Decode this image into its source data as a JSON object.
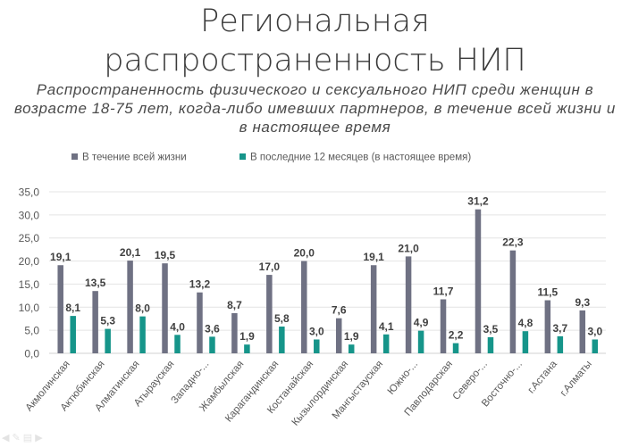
{
  "title": "Региональная распространенность НИП",
  "subtitle": "Распространенность физического и сексуального НИП среди женщин в возрасте 18-75 лет, когда-либо имевших партнеров, в течение всей жизни и в настоящее время",
  "chart_data": {
    "type": "bar",
    "title": "Региональная распространенность НИП",
    "subtitle": "Распространенность физического и сексуального НИП среди женщин в возрасте 18-75 лет, когда-либо имевших партнеров, в течение всей жизни и в настоящее время",
    "categories": [
      "Акмолинская",
      "Актюбинская",
      "Алматинская",
      "Атырауская",
      "Западно-...",
      "Жамбылская",
      "Карагандинская",
      "Костанайская",
      "Кызылординская",
      "Мангыстауская",
      "Южно-...",
      "Павлодарская",
      "Северо-...",
      "Восточно-...",
      "г.Астана",
      "г.Алматы"
    ],
    "series": [
      {
        "name": "В течение всей жизни",
        "color": "#6f7183",
        "values": [
          19.1,
          13.5,
          20.1,
          19.5,
          13.2,
          8.7,
          17.0,
          20.0,
          7.6,
          19.1,
          21.0,
          11.7,
          31.2,
          22.3,
          11.5,
          9.3
        ]
      },
      {
        "name": "В последние 12 месяцев (в настоящее время)",
        "color": "#16958a",
        "values": [
          8.1,
          5.3,
          8.0,
          4.0,
          3.6,
          1.9,
          5.8,
          3.0,
          1.9,
          4.1,
          4.9,
          2.2,
          3.5,
          4.8,
          3.7,
          3.0
        ]
      }
    ],
    "ylim": [
      0,
      35
    ],
    "yticks": [
      "0,0",
      "5,0",
      "10,0",
      "15,0",
      "20,0",
      "25,0",
      "30,0",
      "35,0"
    ],
    "grid": true,
    "legend_position": "top"
  }
}
